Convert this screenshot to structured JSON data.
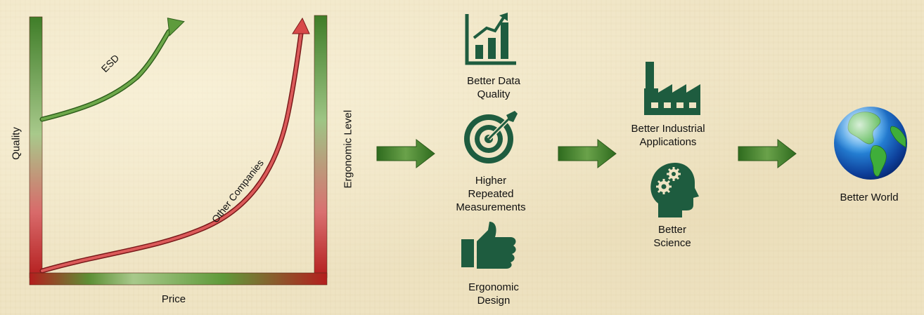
{
  "chart": {
    "y_axis_left": "Quality",
    "y_axis_right": "Ergonomic Level",
    "x_axis": "Price",
    "curve_top": "ESD",
    "curve_bottom": "Other Companies"
  },
  "steps": {
    "data_quality": "Better Data\nQuality",
    "repeated": "Higher\nRepeated\nMeasurements",
    "ergonomic": "Ergonomic\nDesign",
    "industrial": "Better Industrial\nApplications",
    "science": "Better\nScience",
    "world": "Better World"
  },
  "colors": {
    "icon": "#1e5c3f",
    "green": "#4a8a2a",
    "red": "#c63a3a"
  }
}
